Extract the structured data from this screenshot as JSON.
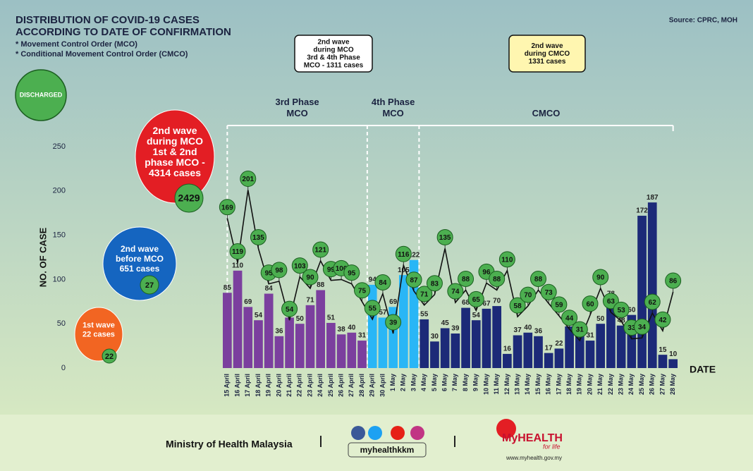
{
  "header": {
    "title": [
      "DISTRIBUTION OF COVID-19 CASES",
      "ACCORDING TO DATE OF CONFIRMATION"
    ],
    "notes": [
      "* Movement Control Order (MCO)",
      "* Conditional Movement Control Order (CMCO)"
    ],
    "source": "Source: CPRC, MOH"
  },
  "chart_data": {
    "type": "bar",
    "categories": [
      "15 April",
      "16 April",
      "17 April",
      "18 April",
      "19 April",
      "20 April",
      "21 April",
      "22 April",
      "23 April",
      "24 April",
      "25 April",
      "26 April",
      "27 April",
      "28 April",
      "29 April",
      "30 April",
      "1 May",
      "2 May",
      "3 May",
      "4 May",
      "5 May",
      "6 May",
      "7 May",
      "8 May",
      "9 May",
      "10 May",
      "11 May",
      "12 May",
      "13 May",
      "14 May",
      "15 May",
      "16 May",
      "17 May",
      "18 May",
      "19 May",
      "20 May",
      "21 May",
      "22 May",
      "23 May",
      "24 May",
      "25 May",
      "26 May",
      "27 May",
      "28 May"
    ],
    "series": [
      {
        "values": [
          85,
          110,
          69,
          54,
          84,
          36,
          57,
          50,
          71,
          88,
          51,
          38,
          40,
          31,
          94,
          57,
          69,
          105,
          122,
          55,
          30,
          45,
          39,
          68,
          54,
          67,
          70,
          16,
          37,
          40,
          36,
          17,
          22,
          47,
          37,
          31,
          50,
          78,
          48,
          60,
          172,
          187,
          15,
          10
        ],
        "colors": [
          "#7b3f9e",
          "#7b3f9e",
          "#7b3f9e",
          "#7b3f9e",
          "#7b3f9e",
          "#7b3f9e",
          "#7b3f9e",
          "#7b3f9e",
          "#7b3f9e",
          "#7b3f9e",
          "#7b3f9e",
          "#7b3f9e",
          "#7b3f9e",
          "#7b3f9e",
          "#29b6f6",
          "#29b6f6",
          "#29b6f6",
          "#29b6f6",
          "#29b6f6",
          "#1c2a78",
          "#1c2a78",
          "#1c2a78",
          "#1c2a78",
          "#1c2a78",
          "#1c2a78",
          "#1c2a78",
          "#1c2a78",
          "#1c2a78",
          "#1c2a78",
          "#1c2a78",
          "#1c2a78",
          "#1c2a78",
          "#1c2a78",
          "#1c2a78",
          "#1c2a78",
          "#1c2a78",
          "#1c2a78",
          "#1c2a78",
          "#1c2a78",
          "#1c2a78",
          "#1c2a78",
          "#1c2a78",
          "#1c2a78",
          "#1c2a78"
        ]
      },
      {
        "name": "DISCHARGED",
        "type": "line",
        "color": "#4caf50",
        "values": [
          169,
          119,
          201,
          135,
          95,
          98,
          54,
          103,
          90,
          121,
          99,
          100,
          95,
          75,
          55,
          84,
          39,
          116,
          87,
          71,
          83,
          135,
          74,
          88,
          65,
          96,
          88,
          110,
          58,
          70,
          88,
          73,
          59,
          44,
          31,
          60,
          90,
          63,
          53,
          33,
          34,
          62,
          42,
          86
        ]
      }
    ],
    "ylabel": "NO. OF CASE",
    "xlabel": "DATE",
    "ylim": [
      0,
      250
    ],
    "yticks": [
      0,
      50,
      100,
      150,
      200,
      250
    ],
    "phases": [
      {
        "label": [
          "3rd Phase",
          "MCO"
        ],
        "color": "#7b3f9e"
      },
      {
        "label": [
          "4th Phase",
          "MCO"
        ],
        "color": "#29b6f6"
      },
      {
        "label": [
          "CMCO"
        ],
        "color": "#1c2a78"
      }
    ],
    "callouts": [
      {
        "lines": [
          "2nd wave",
          "during MCO",
          "3rd & 4th Phase",
          "MCO - 1311 cases"
        ],
        "color": "#ffffff"
      },
      {
        "lines": [
          "2nd wave",
          "during CMCO",
          "1331 cases"
        ],
        "color": "#fff6b0"
      }
    ],
    "waves": [
      {
        "lines": [
          "2nd wave",
          "during MCO",
          "1st & 2nd",
          "phase MCO -",
          "4314 cases"
        ],
        "discharged": 2429,
        "color": "#e31e24"
      },
      {
        "lines": [
          "2nd wave",
          "before MCO",
          "651 cases"
        ],
        "discharged": 27,
        "color": "#1565c0"
      },
      {
        "lines": [
          "1st wave",
          "22 cases"
        ],
        "discharged": 22,
        "color": "#f26522"
      }
    ]
  },
  "footer": {
    "ministry": "Ministry of Health Malaysia",
    "handle": "myhealthkkm",
    "brand": "MyHEALTH",
    "tagline": "for life",
    "url": "www.myhealth.gov.my"
  }
}
